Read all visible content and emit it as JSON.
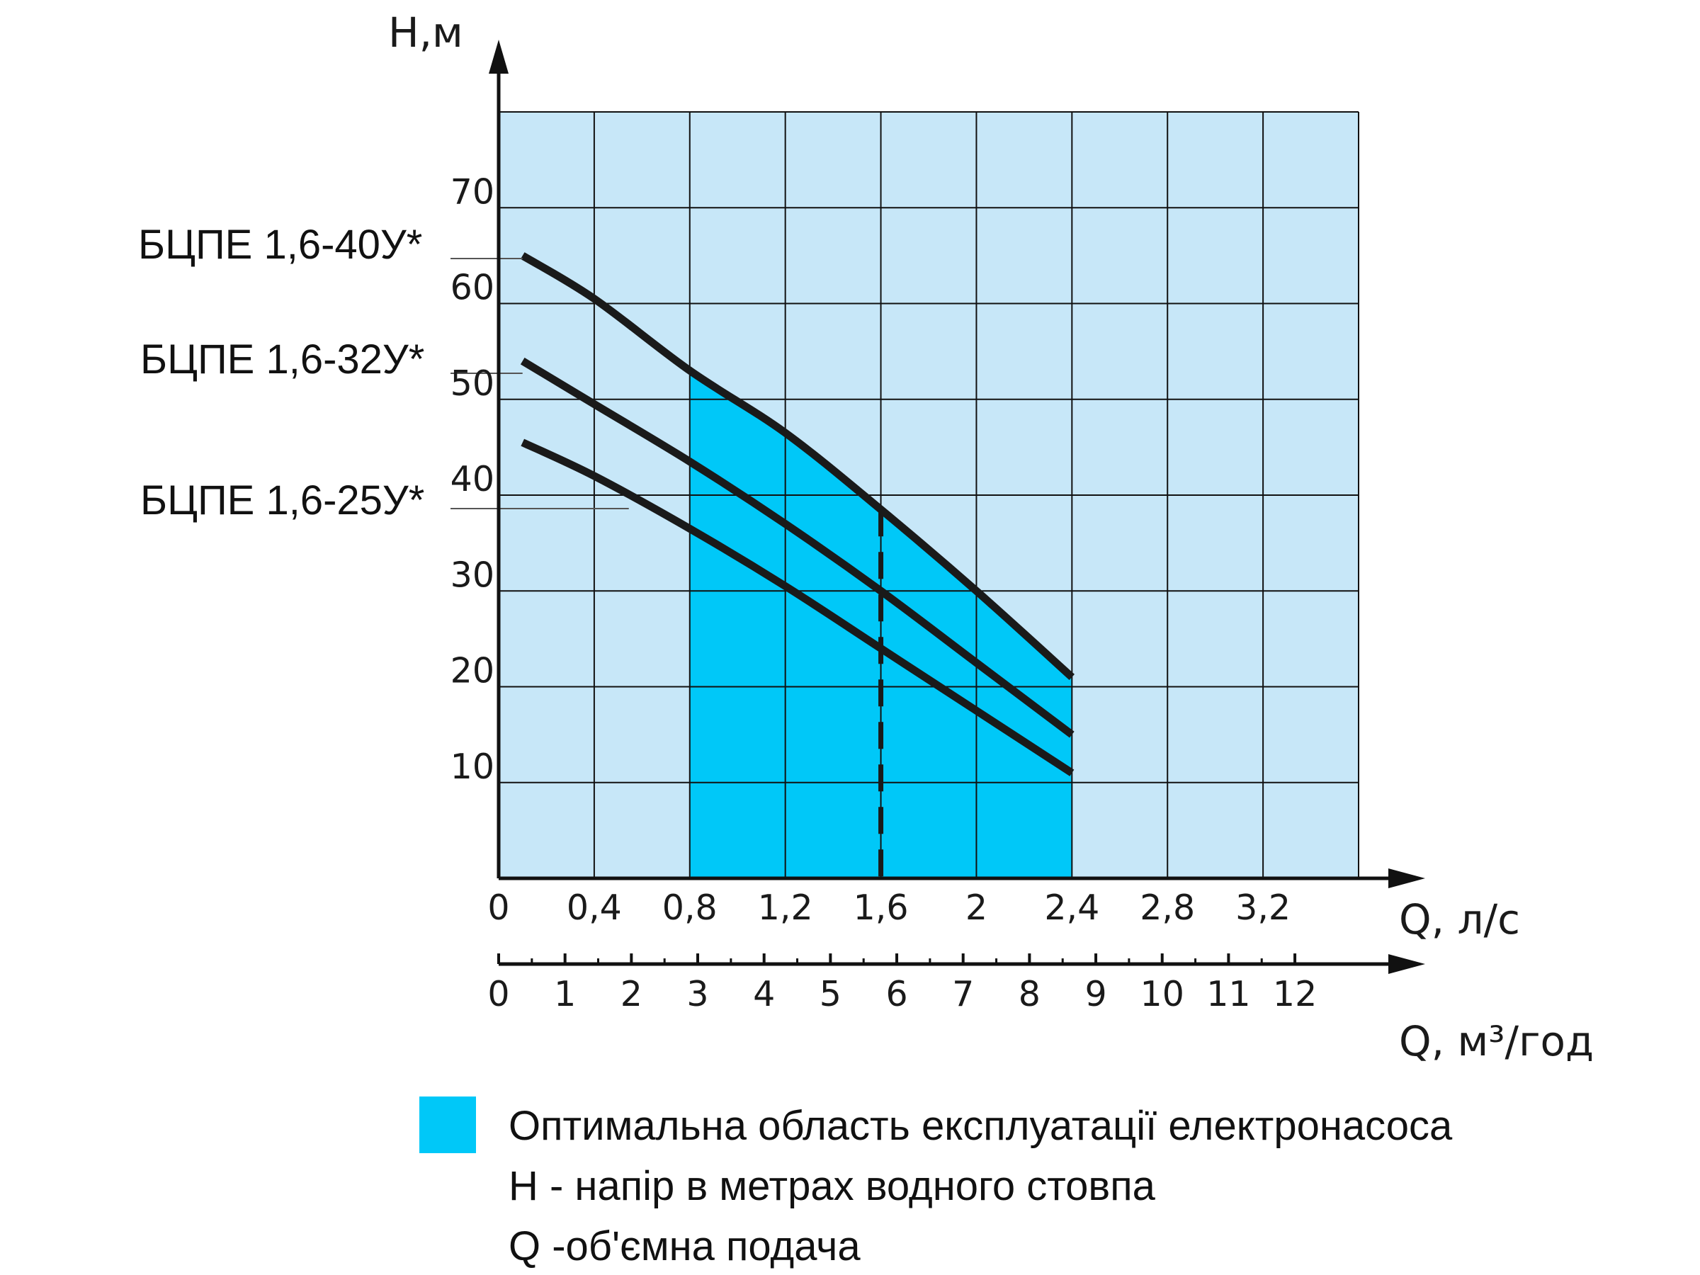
{
  "colors": {
    "background_region": "#c7e7f8",
    "optimal_region": "#00c8f8",
    "grid": "#111111",
    "curve": "#1a1a1a"
  },
  "chart_data": {
    "type": "line",
    "title": "",
    "ylabel": "H,м",
    "xlabel": "Q, л/с",
    "xlabel_secondary": "Q, м³/год",
    "xlim": [
      0,
      3.6
    ],
    "ylim": [
      0,
      80
    ],
    "grid": true,
    "x_ticks": [
      "0",
      "0,4",
      "0,8",
      "1,2",
      "1,6",
      "2",
      "2,4",
      "2,8",
      "3,2"
    ],
    "x_tick_values": [
      0,
      0.4,
      0.8,
      1.2,
      1.6,
      2.0,
      2.4,
      2.8,
      3.2
    ],
    "y_ticks": [
      "10",
      "20",
      "30",
      "40",
      "50",
      "60",
      "70"
    ],
    "y_tick_values": [
      10,
      20,
      30,
      40,
      50,
      60,
      70
    ],
    "secondary_x_ticks": [
      "0",
      "1",
      "2",
      "3",
      "4",
      "5",
      "6",
      "7",
      "8",
      "9",
      "10",
      "11",
      "12"
    ],
    "secondary_x_tick_values": [
      0,
      1,
      2,
      3,
      4,
      5,
      6,
      7,
      8,
      9,
      10,
      11,
      12
    ],
    "secondary_x_minor_ticks": [
      0.5,
      1.5,
      2.5,
      3.5,
      4.5,
      5.5,
      6.5,
      7.5,
      8.5,
      9.5,
      10.5,
      11.5
    ],
    "optimal_region_x": [
      0.8,
      2.4
    ],
    "rated_flow_dashed_x": 1.6,
    "series": [
      {
        "name": "БЦПЕ 1,6-40У*",
        "x": [
          0.1,
          0.4,
          0.8,
          1.2,
          1.6,
          2.0,
          2.4
        ],
        "y": [
          65,
          60.5,
          53,
          46.5,
          38.5,
          30,
          21
        ]
      },
      {
        "name": "БЦПЕ 1,6-32У*",
        "x": [
          0.1,
          0.4,
          0.8,
          1.2,
          1.6,
          2.0,
          2.4
        ],
        "y": [
          54,
          49.5,
          43.5,
          37,
          30,
          22.5,
          15
        ]
      },
      {
        "name": "БЦПЕ 1,6-25У*",
        "x": [
          0.1,
          0.4,
          0.8,
          1.2,
          1.6,
          2.0,
          2.4
        ],
        "y": [
          45.5,
          42,
          36.5,
          30.5,
          24,
          17.5,
          11
        ]
      }
    ]
  },
  "legend": {
    "swatch_label": "Оптимальна область експлуатації електронасоса",
    "h_note": "H - напір в метрах водного стовпа",
    "q_note": "Q -об'ємна подача"
  }
}
